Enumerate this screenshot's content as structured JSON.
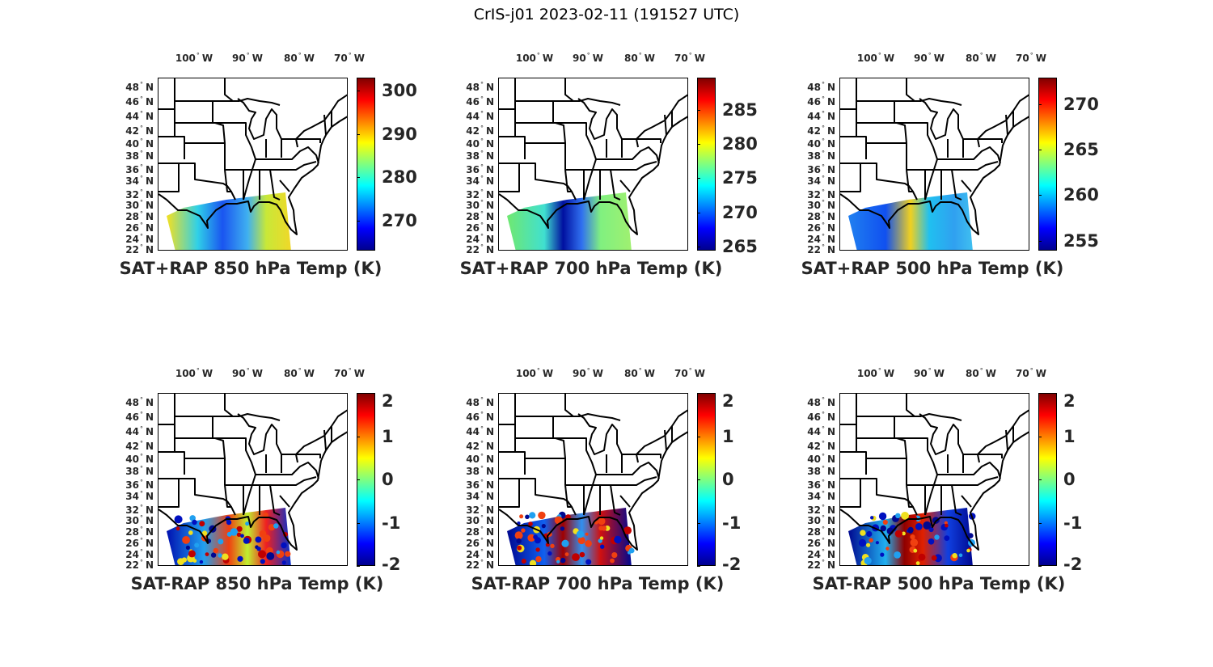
{
  "figure_title": "CrIS-j01 2023-02-11 (191527 UTC)",
  "lon_ticks": [
    "100",
    "90",
    "80",
    "70"
  ],
  "lon_hemisphere": "W",
  "lat_ticks": [
    "48",
    "46",
    "44",
    "42",
    "40",
    "38",
    "36",
    "34",
    "32",
    "30",
    "28",
    "26",
    "24",
    "22"
  ],
  "lat_hemisphere": "N",
  "degree_symbol": "°",
  "colormap": [
    "#00008f",
    "#0000ff",
    "#00ffff",
    "#ffff00",
    "#ff0000",
    "#800000"
  ],
  "panels": [
    {
      "title": "SAT+RAP 850 hPa Temp (K)",
      "clim": [
        263,
        303
      ],
      "cb_ticks": [
        "270",
        "280",
        "290",
        "300"
      ]
    },
    {
      "title": "SAT+RAP 700 hPa Temp (K)",
      "clim": [
        264.4,
        289.7
      ],
      "cb_ticks": [
        "265",
        "270",
        "275",
        "280",
        "285"
      ]
    },
    {
      "title": "SAT+RAP 500 hPa Temp (K)",
      "clim": [
        253.9,
        272.9
      ],
      "cb_ticks": [
        "255",
        "260",
        "265",
        "270"
      ]
    },
    {
      "title": "SAT-RAP 850 hPa Temp (K)",
      "clim": [
        -2,
        2
      ],
      "cb_ticks": [
        "-2",
        "-1",
        "0",
        "1",
        "2"
      ]
    },
    {
      "title": "SAT-RAP 700 hPa Temp (K)",
      "clim": [
        -2,
        2
      ],
      "cb_ticks": [
        "-2",
        "-1",
        "0",
        "1",
        "2"
      ]
    },
    {
      "title": "SAT-RAP 500 hPa Temp (K)",
      "clim": [
        -2,
        2
      ],
      "cb_ticks": [
        "-2",
        "-1",
        "0",
        "1",
        "2"
      ]
    }
  ]
}
